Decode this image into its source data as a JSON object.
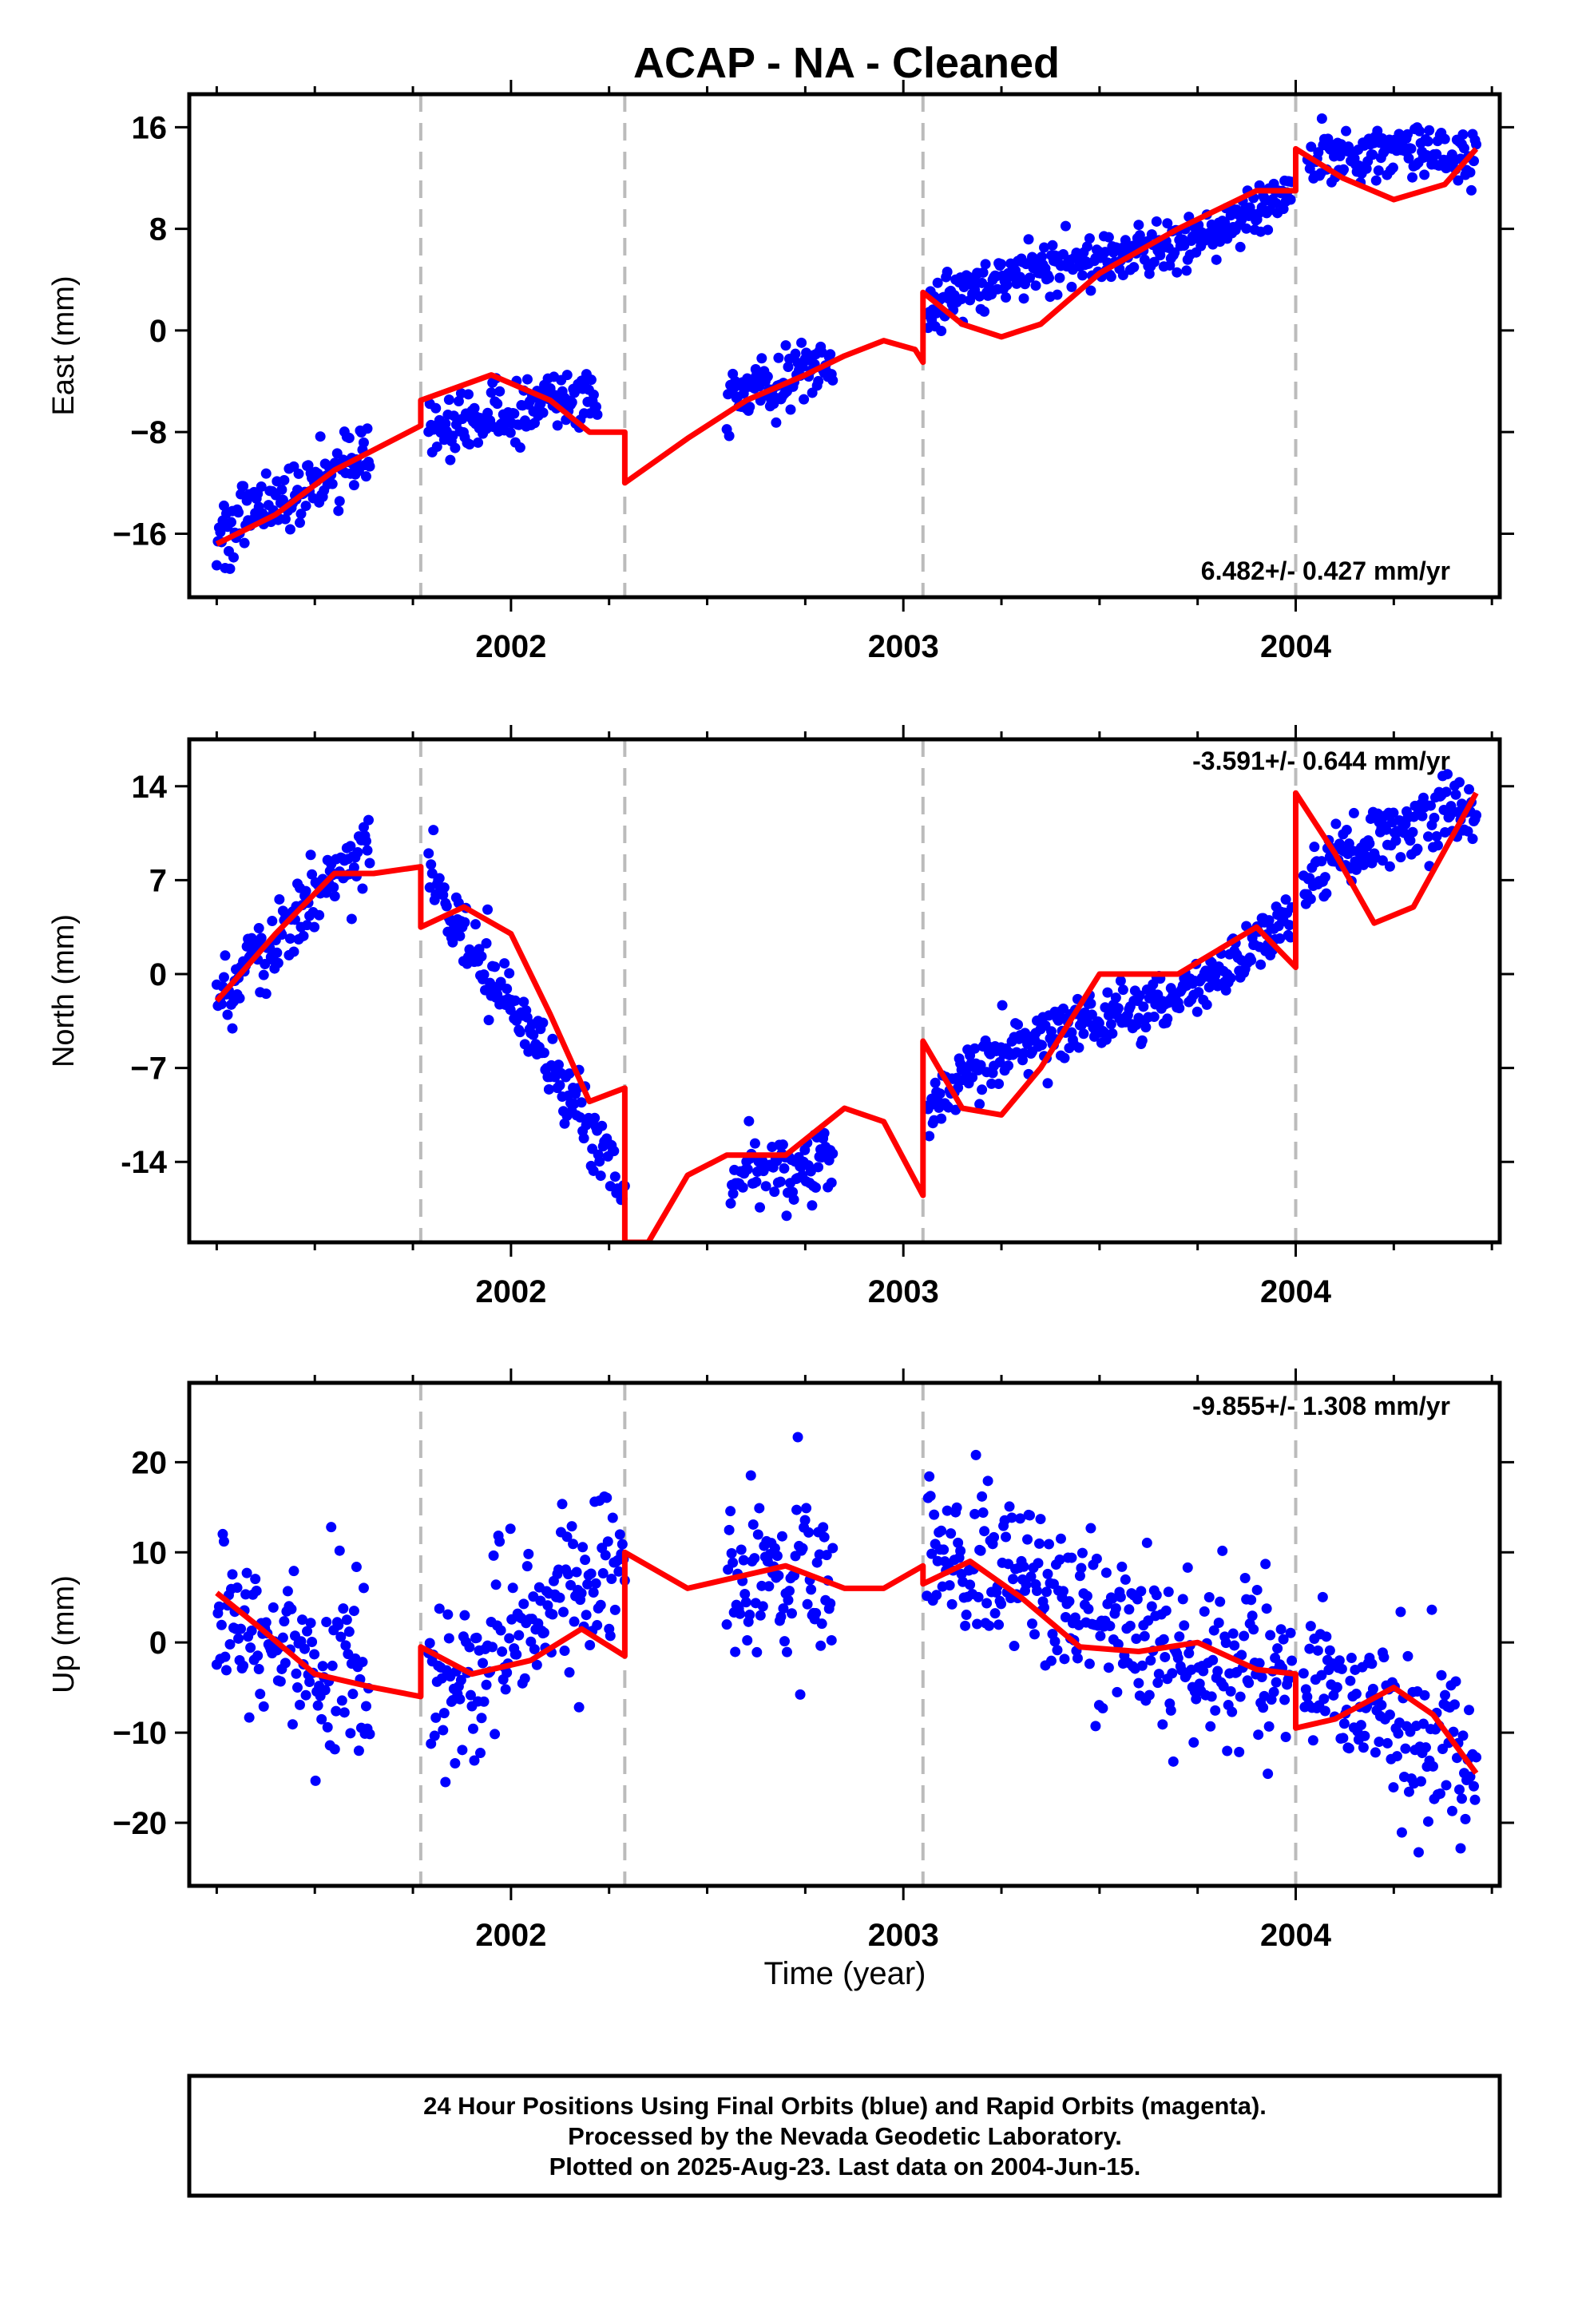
{
  "title": "ACAP  - NA - Cleaned",
  "xlabel": "Time (year)",
  "footer": [
    "24 Hour Positions Using Final Orbits (blue) and Rapid Orbits (magenta).",
    "Processed by the Nevada Geodetic Laboratory.",
    "Plotted on 2025-Aug-23. Last data on 2004-Jun-15."
  ],
  "colors": {
    "data": "#0000ff",
    "model": "#ff0000",
    "breaks": "#bbbbbb"
  },
  "chart_data": [
    {
      "type": "scatter",
      "ylabel": "East (mm)",
      "rate_label": "6.482+/- 0.427 mm/yr",
      "xlim": [
        2001.18,
        2004.52
      ],
      "ylim": [
        -21,
        18.6
      ],
      "xticks": [
        "2002",
        "2003",
        "2004"
      ],
      "yticks": [
        "16",
        "8",
        "0",
        "−8",
        "−16"
      ],
      "ytick_values": [
        16,
        8,
        0,
        -8,
        -16
      ],
      "breaks": [
        2001.77,
        2002.29,
        2003.05,
        2004.0
      ],
      "segments": [
        {
          "x0": 2001.25,
          "x1": 2001.64,
          "trend": [
            -17.0,
            -9.0
          ],
          "amp": 0.6,
          "noise": 1.4
        },
        {
          "x0": 2001.79,
          "x1": 2002.22,
          "trend": [
            -5.5,
            -7.5
          ],
          "amp": 2.2,
          "noise": 1.2
        },
        {
          "x0": 2002.55,
          "x1": 2002.82,
          "trend": [
            -5.0,
            -2.0
          ],
          "amp": 0.4,
          "noise": 1.2
        },
        {
          "x0": 2003.06,
          "x1": 2003.99,
          "trend": [
            1.0,
            11.0
          ],
          "amp": 1.2,
          "noise": 1.0
        },
        {
          "x0": 2004.03,
          "x1": 2004.46,
          "trend": [
            12.5,
            13.0
          ],
          "amp": 1.5,
          "noise": 1.1
        }
      ],
      "model": [
        [
          2001.25,
          -16.8
        ],
        [
          2001.4,
          -14.5
        ],
        [
          2001.55,
          -11.0
        ],
        [
          2001.77,
          -7.5
        ],
        [
          2001.77,
          -5.5
        ],
        [
          2001.95,
          -3.5
        ],
        [
          2002.1,
          -5.5
        ],
        [
          2002.2,
          -8.0
        ],
        [
          2002.28,
          -8.0
        ],
        [
          2002.29,
          -8.0
        ],
        [
          2002.29,
          -12.0
        ],
        [
          2002.45,
          -8.5
        ],
        [
          2002.6,
          -5.5
        ],
        [
          2002.75,
          -3.5
        ],
        [
          2002.85,
          -2.0
        ],
        [
          2002.95,
          -0.8
        ],
        [
          2003.03,
          -1.5
        ],
        [
          2003.05,
          -2.5
        ],
        [
          2003.05,
          3.0
        ],
        [
          2003.15,
          0.5
        ],
        [
          2003.25,
          -0.5
        ],
        [
          2003.35,
          0.5
        ],
        [
          2003.5,
          4.5
        ],
        [
          2003.7,
          8.0
        ],
        [
          2003.9,
          11.0
        ],
        [
          2004.0,
          11.0
        ],
        [
          2004.0,
          14.3
        ],
        [
          2004.12,
          12.0
        ],
        [
          2004.25,
          10.3
        ],
        [
          2004.38,
          11.5
        ],
        [
          2004.46,
          14.3
        ]
      ]
    },
    {
      "type": "scatter",
      "ylabel": "North (mm)",
      "rate_label": "-3.591+/- 0.644 mm/yr",
      "xlim": [
        2001.18,
        2004.52
      ],
      "ylim": [
        -20,
        17.5
      ],
      "xticks": [
        "2002",
        "2003",
        "2004"
      ],
      "yticks": [
        "14",
        "7",
        "0",
        "−7",
        "-14"
      ],
      "ytick_values": [
        14,
        7,
        0,
        -7,
        -14
      ],
      "breaks": [
        2001.77,
        2002.29,
        2003.05,
        2004.0
      ],
      "segments": [
        {
          "x0": 2001.25,
          "x1": 2001.64,
          "trend": [
            -2.5,
            10.0
          ],
          "amp": 0.5,
          "noise": 1.4
        },
        {
          "x0": 2001.79,
          "x1": 2002.29,
          "trend": [
            8.0,
            -16.5
          ],
          "amp": 0.6,
          "noise": 1.3
        },
        {
          "x0": 2002.56,
          "x1": 2002.82,
          "trend": [
            -15.0,
            -13.5
          ],
          "amp": 0.3,
          "noise": 1.2
        },
        {
          "x0": 2003.06,
          "x1": 2003.99,
          "trend": [
            -10.5,
            4.5
          ],
          "amp": 1.5,
          "noise": 1.1
        },
        {
          "x0": 2004.02,
          "x1": 2004.46,
          "trend": [
            6.5,
            12.0
          ],
          "amp": 1.5,
          "noise": 1.2
        }
      ],
      "model": [
        [
          2001.25,
          -2.0
        ],
        [
          2001.4,
          3.0
        ],
        [
          2001.55,
          7.5
        ],
        [
          2001.65,
          7.5
        ],
        [
          2001.77,
          8.0
        ],
        [
          2001.77,
          3.5
        ],
        [
          2001.88,
          5.0
        ],
        [
          2002.0,
          3.0
        ],
        [
          2002.1,
          -3.0
        ],
        [
          2002.2,
          -9.5
        ],
        [
          2002.29,
          -8.5
        ],
        [
          2002.29,
          -20.0
        ],
        [
          2002.35,
          -20.0
        ],
        [
          2002.45,
          -15.0
        ],
        [
          2002.55,
          -13.5
        ],
        [
          2002.7,
          -13.5
        ],
        [
          2002.85,
          -10.0
        ],
        [
          2002.95,
          -11.0
        ],
        [
          2003.05,
          -16.5
        ],
        [
          2003.05,
          -5.0
        ],
        [
          2003.15,
          -10.0
        ],
        [
          2003.25,
          -10.5
        ],
        [
          2003.35,
          -7.0
        ],
        [
          2003.5,
          0.0
        ],
        [
          2003.7,
          0.0
        ],
        [
          2003.9,
          3.5
        ],
        [
          2004.0,
          0.5
        ],
        [
          2004.0,
          13.5
        ],
        [
          2004.1,
          9.0
        ],
        [
          2004.2,
          3.8
        ],
        [
          2004.3,
          5.0
        ],
        [
          2004.46,
          13.5
        ]
      ]
    },
    {
      "type": "scatter",
      "ylabel": "Up (mm)",
      "rate_label": "-9.855+/- 1.308 mm/yr",
      "xlim": [
        2001.18,
        2004.52
      ],
      "ylim": [
        -27,
        28.8
      ],
      "xticks": [
        "2002",
        "2003",
        "2004"
      ],
      "yticks": [
        "20",
        "10",
        "0",
        "−10",
        "−20"
      ],
      "ytick_values": [
        20,
        10,
        0,
        -10,
        -20
      ],
      "breaks": [
        2001.77,
        2002.29,
        2003.05,
        2004.0
      ],
      "segments": [
        {
          "x0": 2001.25,
          "x1": 2001.64,
          "trend": [
            2.0,
            -5.0
          ],
          "amp": 1.5,
          "noise": 5.0
        },
        {
          "x0": 2001.79,
          "x1": 2002.29,
          "trend": [
            -5.0,
            9.0
          ],
          "amp": 1.5,
          "noise": 5.0
        },
        {
          "x0": 2002.55,
          "x1": 2002.82,
          "trend": [
            7.0,
            8.0
          ],
          "amp": 1.0,
          "noise": 5.0
        },
        {
          "x0": 2003.06,
          "x1": 2003.99,
          "trend": [
            9.0,
            -4.0
          ],
          "amp": 1.5,
          "noise": 4.5
        },
        {
          "x0": 2004.02,
          "x1": 2004.46,
          "trend": [
            -4.0,
            -15.0
          ],
          "amp": 1.0,
          "noise": 4.5
        }
      ],
      "model": [
        [
          2001.25,
          5.5
        ],
        [
          2001.35,
          2.0
        ],
        [
          2001.5,
          -3.5
        ],
        [
          2001.65,
          -5.0
        ],
        [
          2001.77,
          -6.0
        ],
        [
          2001.77,
          -0.5
        ],
        [
          2001.9,
          -3.5
        ],
        [
          2002.05,
          -2.0
        ],
        [
          2002.18,
          1.5
        ],
        [
          2002.29,
          -1.5
        ],
        [
          2002.29,
          10.0
        ],
        [
          2002.45,
          6.0
        ],
        [
          2002.6,
          7.5
        ],
        [
          2002.7,
          8.5
        ],
        [
          2002.85,
          6.0
        ],
        [
          2002.95,
          6.0
        ],
        [
          2003.05,
          8.5
        ],
        [
          2003.05,
          6.5
        ],
        [
          2003.17,
          9.0
        ],
        [
          2003.3,
          5.0
        ],
        [
          2003.45,
          -0.5
        ],
        [
          2003.6,
          -1.0
        ],
        [
          2003.75,
          0.0
        ],
        [
          2003.9,
          -3.0
        ],
        [
          2004.0,
          -3.5
        ],
        [
          2004.0,
          -9.5
        ],
        [
          2004.1,
          -8.5
        ],
        [
          2004.25,
          -5.0
        ],
        [
          2004.35,
          -8.0
        ],
        [
          2004.46,
          -14.5
        ]
      ]
    }
  ]
}
